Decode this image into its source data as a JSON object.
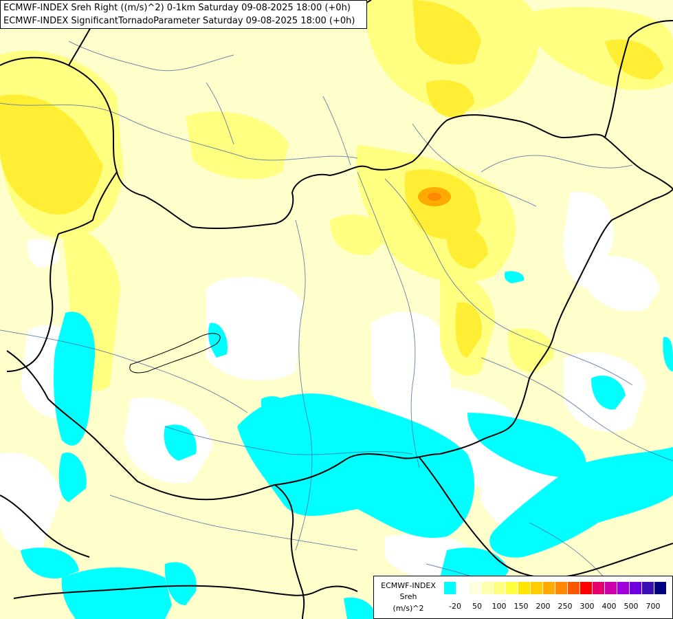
{
  "title": {
    "line1": "ECMWF-INDEX Sreh Right ((m/s)^2) 0-1km Saturday 09-08-2025 18:00 (+0h)",
    "line2": "ECMWF-INDEX SignificantTornadoParameter Saturday 09-08-2025 18:00 (+0h)"
  },
  "legend": {
    "title1": "ECMWF-INDEX",
    "title2": "Sreh",
    "title3": "(m/s)^2",
    "colors": [
      "#00ffff",
      "#ffffff",
      "#ffffe0",
      "#ffffb0",
      "#ffff80",
      "#ffff40",
      "#ffe600",
      "#ffcc00",
      "#ffaa00",
      "#ff8800",
      "#ff5500",
      "#ff0000",
      "#e6006e",
      "#cc00aa",
      "#a000dc",
      "#7000e0",
      "#3c0fb4",
      "#000080"
    ],
    "ticks": [
      "-20",
      "50",
      "100",
      "150",
      "200",
      "250",
      "300",
      "400",
      "500",
      "700"
    ]
  },
  "colors": {
    "background": "#ffffcc",
    "low_negative": "#00ffff",
    "yellow_mid": "#ffff80",
    "yellow_high": "#ffee33",
    "orange": "#ffaa00"
  }
}
